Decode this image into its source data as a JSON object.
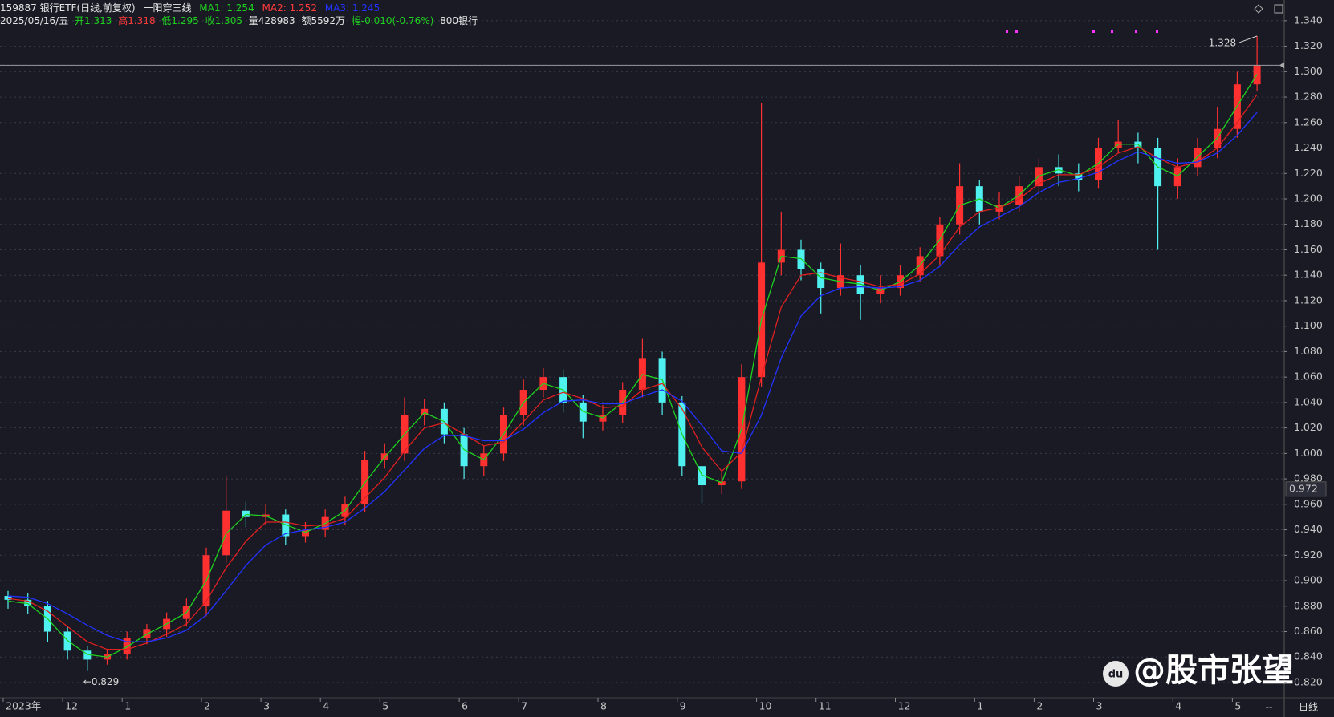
{
  "header": {
    "code": "159887 银行ETF(日线,前复权)",
    "indicator": "一阳穿三线",
    "ma_labels": [
      "MA1: 1.254",
      "MA2: 1.252",
      "MA3: 1.245"
    ],
    "date": "2025/05/16/五",
    "open": "开1.313",
    "high": "高1.318",
    "low": "低1.295",
    "close": "收1.305",
    "volume": "量428983",
    "amount": "额5592万",
    "change": "幅-0.010(-0.76%)",
    "sector": "800银行"
  },
  "footer": {
    "period": "日线",
    "placeholder": "--"
  },
  "watermark": "@股市张望",
  "chart_data": {
    "type": "candlestick",
    "categories": [
      "2023年",
      null,
      null,
      "12",
      null,
      null,
      "1",
      null,
      null,
      null,
      "2",
      null,
      null,
      "3",
      null,
      null,
      "4",
      null,
      null,
      "5",
      null,
      null,
      null,
      "6",
      null,
      null,
      "7",
      null,
      null,
      null,
      "8",
      null,
      null,
      null,
      "9",
      null,
      null,
      null,
      "10",
      null,
      null,
      "11",
      null,
      null,
      null,
      "12",
      null,
      null,
      null,
      "1",
      null,
      null,
      "2",
      null,
      null,
      "3",
      null,
      null,
      null,
      "4",
      null,
      null,
      "5",
      null
    ],
    "open": [
      0.888,
      0.885,
      0.88,
      0.86,
      0.845,
      0.838,
      0.842,
      0.855,
      0.862,
      0.87,
      0.88,
      0.92,
      0.955,
      0.95,
      0.952,
      0.935,
      0.94,
      0.95,
      0.96,
      0.995,
      1.0,
      1.03,
      1.035,
      1.015,
      0.99,
      1.0,
      1.03,
      1.05,
      1.06,
      1.04,
      1.025,
      1.03,
      1.05,
      1.075,
      1.04,
      0.99,
      0.975,
      0.978,
      1.06,
      1.15,
      1.16,
      1.145,
      1.13,
      1.14,
      1.125,
      1.13,
      1.14,
      1.155,
      1.18,
      1.21,
      1.19,
      1.195,
      1.21,
      1.225,
      1.22,
      1.215,
      1.24,
      1.245,
      1.24,
      1.21,
      1.225,
      1.24,
      1.255,
      1.29
    ],
    "high": [
      0.892,
      0.89,
      0.884,
      0.864,
      0.849,
      0.846,
      0.86,
      0.866,
      0.875,
      0.886,
      0.926,
      0.982,
      0.962,
      0.96,
      0.956,
      0.946,
      0.956,
      0.966,
      1.002,
      1.008,
      1.044,
      1.043,
      1.04,
      1.02,
      1.006,
      1.036,
      1.058,
      1.067,
      1.066,
      1.046,
      1.038,
      1.056,
      1.09,
      1.08,
      1.045,
      0.99,
      0.985,
      1.07,
      1.275,
      1.19,
      1.168,
      1.15,
      1.165,
      1.148,
      1.14,
      1.148,
      1.162,
      1.186,
      1.228,
      1.215,
      1.205,
      1.218,
      1.232,
      1.235,
      1.228,
      1.248,
      1.262,
      1.252,
      1.248,
      1.232,
      1.248,
      1.272,
      1.3,
      1.328
    ],
    "low": [
      0.878,
      0.874,
      0.852,
      0.838,
      0.829,
      0.834,
      0.838,
      0.85,
      0.856,
      0.864,
      0.872,
      0.914,
      0.942,
      0.944,
      0.928,
      0.93,
      0.934,
      0.944,
      0.954,
      0.988,
      0.994,
      1.022,
      1.008,
      0.98,
      0.982,
      0.994,
      1.022,
      1.044,
      1.032,
      1.012,
      1.018,
      1.024,
      1.044,
      1.03,
      0.982,
      0.961,
      0.968,
      0.972,
      1.052,
      1.14,
      1.136,
      1.11,
      1.124,
      1.105,
      1.118,
      1.124,
      1.135,
      1.148,
      1.172,
      1.18,
      1.184,
      1.19,
      1.204,
      1.21,
      1.206,
      1.208,
      1.236,
      1.228,
      1.16,
      1.2,
      1.218,
      1.232,
      1.248,
      1.285
    ],
    "close": [
      0.885,
      0.88,
      0.86,
      0.845,
      0.838,
      0.842,
      0.855,
      0.862,
      0.87,
      0.88,
      0.92,
      0.955,
      0.95,
      0.952,
      0.935,
      0.94,
      0.95,
      0.96,
      0.995,
      1.0,
      1.03,
      1.035,
      1.015,
      0.99,
      1.0,
      1.03,
      1.05,
      1.06,
      1.04,
      1.025,
      1.03,
      1.05,
      1.075,
      1.04,
      0.99,
      0.975,
      0.978,
      1.06,
      1.15,
      1.16,
      1.145,
      1.13,
      1.14,
      1.125,
      1.13,
      1.14,
      1.155,
      1.18,
      1.21,
      1.19,
      1.195,
      1.21,
      1.225,
      1.22,
      1.215,
      1.24,
      1.245,
      1.24,
      1.21,
      1.225,
      1.24,
      1.255,
      1.29,
      1.305
    ],
    "up_color": "#ff3030",
    "down_color": "#4ff0f0",
    "ma": [
      {
        "color": "#1fd21f",
        "values": [
          0.884,
          0.882,
          0.87,
          0.853,
          0.842,
          0.84,
          0.848,
          0.858,
          0.866,
          0.875,
          0.9,
          0.937,
          0.952,
          0.951,
          0.944,
          0.938,
          0.945,
          0.955,
          0.977,
          0.997,
          1.015,
          1.032,
          1.025,
          1.003,
          0.995,
          1.015,
          1.04,
          1.055,
          1.05,
          1.033,
          1.028,
          1.04,
          1.062,
          1.058,
          1.015,
          0.983,
          0.977,
          1.019,
          1.105,
          1.155,
          1.153,
          1.138,
          1.135,
          1.133,
          1.128,
          1.135,
          1.148,
          1.168,
          1.195,
          1.2,
          1.193,
          1.203,
          1.218,
          1.223,
          1.218,
          1.228,
          1.243,
          1.243,
          1.225,
          1.218,
          1.233,
          1.248,
          1.273,
          1.298
        ]
      },
      {
        "color": "#e02020",
        "values": [
          0.886,
          0.884,
          0.876,
          0.864,
          0.852,
          0.846,
          0.846,
          0.851,
          0.858,
          0.866,
          0.884,
          0.91,
          0.931,
          0.946,
          0.946,
          0.943,
          0.944,
          0.949,
          0.965,
          0.981,
          1.002,
          1.02,
          1.024,
          1.015,
          1.006,
          1.009,
          1.025,
          1.042,
          1.048,
          1.043,
          1.036,
          1.037,
          1.05,
          1.055,
          1.035,
          1.005,
          0.986,
          1.001,
          1.06,
          1.115,
          1.14,
          1.142,
          1.138,
          1.135,
          1.131,
          1.133,
          1.141,
          1.156,
          1.178,
          1.19,
          1.193,
          1.2,
          1.212,
          1.219,
          1.219,
          1.225,
          1.236,
          1.241,
          1.232,
          1.225,
          1.229,
          1.24,
          1.26,
          1.282
        ]
      },
      {
        "color": "#2233ff",
        "values": [
          0.888,
          0.887,
          0.882,
          0.874,
          0.865,
          0.857,
          0.852,
          0.852,
          0.855,
          0.861,
          0.873,
          0.892,
          0.912,
          0.928,
          0.937,
          0.94,
          0.942,
          0.946,
          0.957,
          0.97,
          0.987,
          1.004,
          1.014,
          1.014,
          1.01,
          1.01,
          1.019,
          1.032,
          1.041,
          1.042,
          1.039,
          1.039,
          1.045,
          1.05,
          1.041,
          1.022,
          1.002,
          1.0,
          1.03,
          1.075,
          1.108,
          1.124,
          1.13,
          1.131,
          1.13,
          1.131,
          1.136,
          1.147,
          1.164,
          1.178,
          1.186,
          1.194,
          1.205,
          1.213,
          1.216,
          1.221,
          1.23,
          1.237,
          1.232,
          1.228,
          1.229,
          1.236,
          1.25,
          1.268
        ]
      }
    ],
    "max_label": "1.328",
    "min_label": "←0.829",
    "cursor": {
      "value": 0.972,
      "label": "0.972"
    },
    "ylim": [
      0.808,
      1.35
    ],
    "yticks": [
      {
        "value": 0.82,
        "label": "0.820"
      },
      {
        "value": 0.84,
        "label": "0.840"
      },
      {
        "value": 0.86,
        "label": "0.860"
      },
      {
        "value": 0.88,
        "label": "0.880"
      },
      {
        "value": 0.9,
        "label": "0.900"
      },
      {
        "value": 0.92,
        "label": "0.920"
      },
      {
        "value": 0.94,
        "label": "0.940"
      },
      {
        "value": 0.96,
        "label": "0.960"
      },
      {
        "value": 0.98,
        "label": "0.980"
      },
      {
        "value": 1.0,
        "label": "1.000"
      },
      {
        "value": 1.02,
        "label": "1.020"
      },
      {
        "value": 1.04,
        "label": "1.040"
      },
      {
        "value": 1.06,
        "label": "1.060"
      },
      {
        "value": 1.08,
        "label": "1.080"
      },
      {
        "value": 1.1,
        "label": "1.100"
      },
      {
        "value": 1.12,
        "label": "1.120"
      },
      {
        "value": 1.14,
        "label": "1.140"
      },
      {
        "value": 1.16,
        "label": "1.160"
      },
      {
        "value": 1.18,
        "label": "1.180"
      },
      {
        "value": 1.2,
        "label": "1.200"
      },
      {
        "value": 1.22,
        "label": "1.220"
      },
      {
        "value": 1.24,
        "label": "1.240"
      },
      {
        "value": 1.26,
        "label": "1.260"
      },
      {
        "value": 1.28,
        "label": "1.280"
      },
      {
        "value": 1.3,
        "label": "1.300"
      },
      {
        "value": 1.32,
        "label": "1.320"
      },
      {
        "value": 1.34,
        "label": "1.340"
      }
    ],
    "grid": true
  }
}
